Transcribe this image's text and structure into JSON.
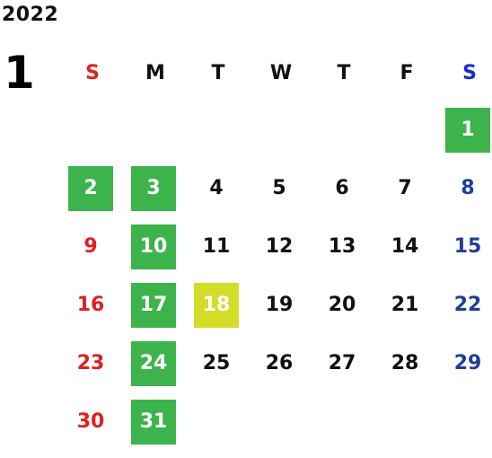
{
  "year": "2022",
  "month": "1",
  "weekdays": [
    "S",
    "M",
    "T",
    "W",
    "T",
    "F",
    "S"
  ],
  "colors": {
    "sunday": "#e02020",
    "saturday": "#1f3f96",
    "holiday": "#3cb44b",
    "today": "#d4dd26"
  },
  "days": [
    {
      "label": "1",
      "type": "holiday"
    },
    {
      "label": "2",
      "type": "holiday"
    },
    {
      "label": "3",
      "type": "holiday"
    },
    {
      "label": "4",
      "type": "weekday"
    },
    {
      "label": "5",
      "type": "weekday"
    },
    {
      "label": "6",
      "type": "weekday"
    },
    {
      "label": "7",
      "type": "weekday"
    },
    {
      "label": "8",
      "type": "sat"
    },
    {
      "label": "9",
      "type": "sun"
    },
    {
      "label": "10",
      "type": "holiday"
    },
    {
      "label": "11",
      "type": "weekday"
    },
    {
      "label": "12",
      "type": "weekday"
    },
    {
      "label": "13",
      "type": "weekday"
    },
    {
      "label": "14",
      "type": "weekday"
    },
    {
      "label": "15",
      "type": "sat"
    },
    {
      "label": "16",
      "type": "sun"
    },
    {
      "label": "17",
      "type": "holiday"
    },
    {
      "label": "18",
      "type": "today"
    },
    {
      "label": "19",
      "type": "weekday"
    },
    {
      "label": "20",
      "type": "weekday"
    },
    {
      "label": "21",
      "type": "weekday"
    },
    {
      "label": "22",
      "type": "sat"
    },
    {
      "label": "23",
      "type": "sun"
    },
    {
      "label": "24",
      "type": "holiday"
    },
    {
      "label": "25",
      "type": "weekday"
    },
    {
      "label": "26",
      "type": "weekday"
    },
    {
      "label": "27",
      "type": "weekday"
    },
    {
      "label": "28",
      "type": "weekday"
    },
    {
      "label": "29",
      "type": "sat"
    },
    {
      "label": "30",
      "type": "sun"
    },
    {
      "label": "31",
      "type": "holiday"
    }
  ]
}
